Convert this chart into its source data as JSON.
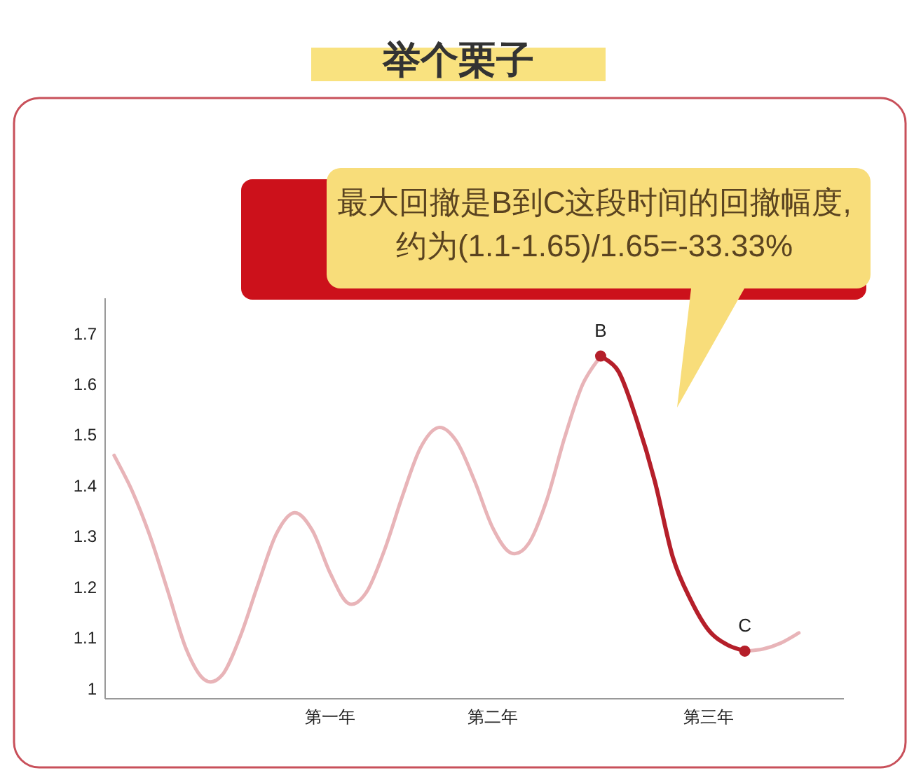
{
  "chart_data": {
    "type": "line",
    "title": "举个栗子",
    "categories": [
      null,
      null,
      null,
      null,
      null,
      null,
      null,
      null,
      null,
      null,
      null,
      null,
      "第一年",
      null,
      null,
      null,
      null,
      null,
      null,
      null,
      null,
      "第二年",
      null,
      null,
      null,
      null,
      null,
      null,
      null,
      null,
      null,
      null,
      null,
      "第三年",
      null,
      null,
      null,
      null,
      null,
      null,
      null
    ],
    "ylim": [
      0.98,
      1.77
    ],
    "yticks": [
      1,
      1.1,
      1.2,
      1.3,
      1.4,
      1.5,
      1.6,
      1.7
    ],
    "grid": false,
    "series": [
      {
        "color": "#e8b4b8",
        "values": [
          1.46,
          1.39,
          1.3,
          1.19,
          1.078,
          1.018,
          1.027,
          1.103,
          1.207,
          1.305,
          1.347,
          1.312,
          1.227,
          1.168,
          1.19,
          1.273,
          1.38,
          1.475,
          1.515,
          1.488,
          1.41,
          1.318,
          1.268,
          1.286,
          1.371,
          1.495,
          1.6,
          1.656,
          null,
          null,
          null,
          null,
          null,
          null,
          null,
          null,
          null,
          null,
          null,
          null,
          null
        ]
      },
      {
        "color": "#b51f2a",
        "values": [
          null,
          null,
          null,
          null,
          null,
          null,
          null,
          null,
          null,
          null,
          null,
          null,
          null,
          null,
          null,
          null,
          null,
          null,
          null,
          null,
          null,
          null,
          null,
          null,
          null,
          null,
          null,
          1.656,
          1.625,
          1.53,
          1.41,
          1.26,
          1.175,
          1.115,
          1.087,
          1.074,
          null,
          null,
          null,
          null,
          null
        ]
      },
      {
        "color": "#e8b4b8",
        "values": [
          null,
          null,
          null,
          null,
          null,
          null,
          null,
          null,
          null,
          null,
          null,
          null,
          null,
          null,
          null,
          null,
          null,
          null,
          null,
          null,
          null,
          null,
          null,
          null,
          null,
          null,
          null,
          null,
          null,
          null,
          null,
          null,
          null,
          null,
          null,
          1.074,
          1.078,
          1.09,
          1.11,
          null,
          null
        ]
      },
      {
        "type": "scatter",
        "marker": "circle",
        "color": "#b51f2a",
        "values": [
          null,
          null,
          null,
          null,
          null,
          null,
          null,
          null,
          null,
          null,
          null,
          null,
          null,
          null,
          null,
          null,
          null,
          null,
          null,
          null,
          null,
          null,
          null,
          null,
          null,
          null,
          null,
          1.656,
          null,
          null,
          null,
          null,
          null,
          null,
          null,
          1.074,
          null,
          null,
          null,
          null,
          null
        ]
      }
    ],
    "annotations": [
      {
        "text": "B",
        "y": 1.656
      },
      {
        "text": "C",
        "y": 1.074
      },
      "最大回撤是B到C这段时间的回撤幅度,约为(1.1-1.65)/1.65=-33.33%"
    ]
  }
}
